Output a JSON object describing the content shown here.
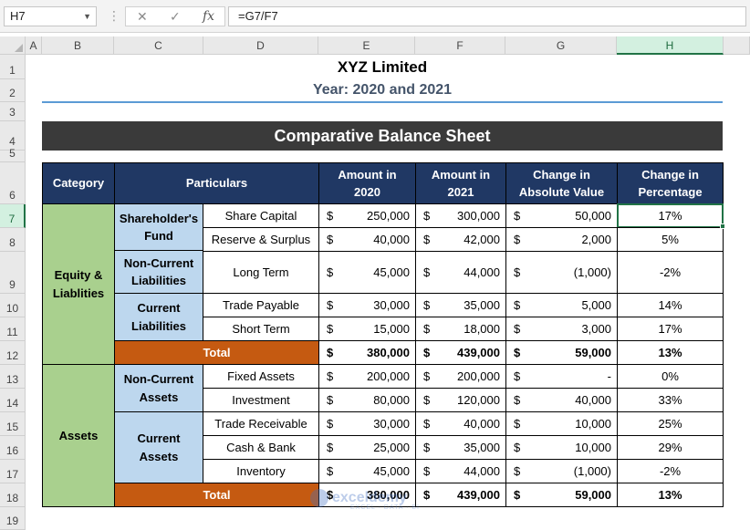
{
  "formula_bar": {
    "name_box": "H7",
    "formula": "=G7/F7",
    "cancel_glyph": "✕",
    "enter_glyph": "✓",
    "fx_label": "fx"
  },
  "columns": [
    "A",
    "B",
    "C",
    "D",
    "E",
    "F",
    "G",
    "H"
  ],
  "rows": [
    "1",
    "2",
    "3",
    "4",
    "5",
    "6",
    "7",
    "8",
    "9",
    "10",
    "11",
    "12",
    "13",
    "14",
    "15",
    "16",
    "17",
    "18",
    "19"
  ],
  "sheet": {
    "title": "XYZ Limited",
    "subtitle": "Year: 2020 and 2021",
    "banner": "Comparative Balance Sheet",
    "headers": {
      "category": "Category",
      "particulars": "Particulars",
      "amount2020": "Amount in 2020",
      "amount2021": "Amount in 2021",
      "abs_change": "Change in Absolute Value",
      "pct_change": "Change in Percentage"
    },
    "groups": {
      "equity": "Equity & Liablities",
      "assets": "Assets",
      "shareholders_fund": "Shareholder's Fund",
      "noncurrent_liabilities": "Non-Current Liabilities",
      "current_liabilities": "Current Liabilities",
      "noncurrent_assets": "Non-Current Assets",
      "current_assets": "Current Assets"
    },
    "currency": "$",
    "items": [
      {
        "label": "Share Capital",
        "a2020": "250,000",
        "a2021": "300,000",
        "abs": "50,000",
        "pct": "17%"
      },
      {
        "label": "Reserve & Surplus",
        "a2020": "40,000",
        "a2021": "42,000",
        "abs": "2,000",
        "pct": "5%"
      },
      {
        "label": "Long Term",
        "a2020": "45,000",
        "a2021": "44,000",
        "abs": "(1,000)",
        "pct": "-2%"
      },
      {
        "label": "Trade Payable",
        "a2020": "30,000",
        "a2021": "35,000",
        "abs": "5,000",
        "pct": "14%"
      },
      {
        "label": "Short Term",
        "a2020": "15,000",
        "a2021": "18,000",
        "abs": "3,000",
        "pct": "17%"
      },
      {
        "label": "Fixed Assets",
        "a2020": "200,000",
        "a2021": "200,000",
        "abs": "-",
        "pct": "0%"
      },
      {
        "label": "Investment",
        "a2020": "80,000",
        "a2021": "120,000",
        "abs": "40,000",
        "pct": "33%"
      },
      {
        "label": "Trade Receivable",
        "a2020": "30,000",
        "a2021": "40,000",
        "abs": "10,000",
        "pct": "25%"
      },
      {
        "label": "Cash & Bank",
        "a2020": "25,000",
        "a2021": "35,000",
        "abs": "10,000",
        "pct": "29%"
      },
      {
        "label": "Inventory",
        "a2020": "45,000",
        "a2021": "44,000",
        "abs": "(1,000)",
        "pct": "-2%"
      }
    ],
    "totals": [
      {
        "label": "Total",
        "a2020": "380,000",
        "a2021": "439,000",
        "abs": "59,000",
        "pct": "13%"
      },
      {
        "label": "Total",
        "a2020": "380,000",
        "a2021": "439,000",
        "abs": "59,000",
        "pct": "13%"
      }
    ]
  },
  "watermark": {
    "name": "exceldemy",
    "tagline": "EXCEL · DATA · BI"
  }
}
